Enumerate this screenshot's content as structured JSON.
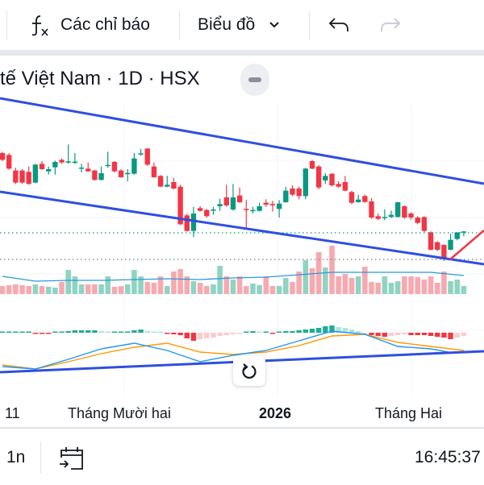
{
  "toolbar": {
    "indicators_label": "Các chỉ báo",
    "indicators_icon": "function-fx-icon",
    "chart_type_label": "Biểu đồ",
    "chart_type_icon": "chevron-down-icon",
    "undo_icon": "undo-icon",
    "redo_icon": "redo-icon"
  },
  "legend": {
    "title": "tế Việt Nam · 1D · HSX",
    "collapse_icon": "minus-icon"
  },
  "time_axis": {
    "labels": [
      "11",
      "Tháng Mười hai",
      "2026",
      "Tháng Hai"
    ]
  },
  "reset_icon": "reset-rotate-icon",
  "bottom_bar": {
    "range": "1n",
    "goto_date_icon": "calendar-goto-icon",
    "clock": "16:45:37"
  },
  "colors": {
    "up": "#089981",
    "down": "#f23645",
    "up_volume": "#8fd3c4",
    "down_volume": "#f7a9b0",
    "trendline": "#2f4fe0",
    "ray": "#f23645",
    "macd_line": "#2196f3",
    "signal_line": "#ff9800",
    "volume_ma": "#2b9ad6"
  },
  "chart_data": {
    "type": "candlestick",
    "candles": [
      [
        440,
        415,
        445,
        410
      ],
      [
        433,
        382,
        440,
        378
      ],
      [
        375,
        330,
        385,
        325
      ],
      [
        375,
        330,
        380,
        325
      ],
      [
        370,
        325,
        390,
        322
      ],
      [
        330,
        397,
        400,
        328
      ],
      [
        400,
        380,
        410,
        378
      ],
      [
        372,
        380,
        390,
        360
      ],
      [
        387,
        407,
        412,
        360
      ],
      [
        415,
        405,
        420,
        400
      ],
      [
        408,
        409,
        472,
        400
      ],
      [
        407,
        408,
        440,
        400
      ],
      [
        385,
        386,
        400,
        368
      ],
      [
        382,
        372,
        405,
        370
      ],
      [
        375,
        340,
        378,
        338
      ],
      [
        340,
        365,
        390,
        338
      ],
      [
        393,
        396,
        445,
        385
      ],
      [
        407,
        372,
        410,
        368
      ],
      [
        375,
        350,
        380,
        348
      ],
      [
        364,
        366,
        380,
        335
      ],
      [
        363,
        420,
        440,
        360
      ],
      [
        436,
        439,
        455,
        430
      ],
      [
        457,
        397,
        457,
        392
      ],
      [
        390,
        350,
        405,
        348
      ],
      [
        355,
        315,
        358,
        313
      ],
      [
        315,
        322,
        355,
        313
      ],
      [
        332,
        308,
        348,
        305
      ],
      [
        315,
        175,
        322,
        172
      ],
      [
        208,
        150,
        215,
        148
      ],
      [
        150,
        215,
        240,
        127
      ],
      [
        235,
        225,
        242,
        222
      ],
      [
        228,
        205,
        232,
        200
      ],
      [
        229,
        230,
        240,
        210
      ],
      [
        242,
        250,
        270,
        225
      ],
      [
        275,
        245,
        322,
        240
      ],
      [
        230,
        275,
        325,
        225
      ],
      [
        282,
        257,
        312,
        255
      ],
      [
        232,
        228,
        265,
        162
      ],
      [
        227,
        228,
        240,
        215
      ],
      [
        225,
        242,
        255,
        222
      ],
      [
        255,
        248,
        268,
        240
      ],
      [
        250,
        245,
        262,
        222
      ],
      [
        232,
        252,
        265,
        200
      ],
      [
        257,
        300,
        315,
        255
      ],
      [
        308,
        285,
        320,
        280
      ],
      [
        308,
        280,
        315,
        268
      ],
      [
        280,
        382,
        385,
        268
      ],
      [
        410,
        382,
        415,
        380
      ],
      [
        390,
        312,
        395,
        305
      ],
      [
        338,
        355,
        365,
        325
      ],
      [
        363,
        320,
        365,
        315
      ],
      [
        325,
        315,
        335,
        310
      ],
      [
        332,
        300,
        355,
        298
      ],
      [
        295,
        255,
        300,
        250
      ],
      [
        257,
        267,
        285,
        255
      ],
      [
        280,
        258,
        285,
        255
      ],
      [
        260,
        200,
        272,
        195
      ],
      [
        205,
        195,
        215,
        190
      ],
      [
        198,
        202,
        230,
        190
      ],
      [
        202,
        210,
        225,
        198
      ],
      [
        202,
        257,
        258,
        200
      ],
      [
        242,
        200,
        245,
        195
      ],
      [
        215,
        200,
        220,
        192
      ],
      [
        200,
        180,
        205,
        175
      ],
      [
        202,
        150,
        205,
        145
      ],
      [
        145,
        80,
        148,
        78
      ],
      [
        108,
        80,
        112,
        75
      ],
      [
        98,
        45,
        100,
        38
      ],
      [
        80,
        117,
        140,
        78
      ],
      [
        120,
        145,
        145,
        115
      ],
      [
        147,
        148,
        150,
        130
      ]
    ],
    "volume": [
      10,
      11,
      12,
      11,
      10,
      12,
      10,
      9,
      8,
      15,
      30,
      22,
      12,
      12,
      12,
      12,
      22,
      9,
      10,
      12,
      30,
      22,
      15,
      14,
      22,
      10,
      28,
      31,
      22,
      16,
      14,
      10,
      12,
      35,
      22,
      18,
      22,
      10,
      13,
      11,
      22,
      10,
      10,
      20,
      15,
      28,
      42,
      32,
      52,
      33,
      60,
      22,
      25,
      20,
      22,
      34,
      15,
      14,
      22,
      14,
      16,
      22,
      22,
      21,
      18,
      22,
      14,
      28,
      16,
      18,
      10
    ],
    "volume_ma": [
      22,
      16,
      17,
      17,
      18,
      19,
      18,
      20,
      21,
      24,
      27,
      27,
      27,
      27,
      23
    ],
    "macd_histogram": [
      0,
      0,
      0,
      0,
      0,
      -1,
      -1,
      -1,
      1,
      1,
      2,
      3,
      3,
      3,
      3,
      2,
      1,
      1,
      1,
      1,
      3,
      4,
      2,
      1,
      0,
      -1,
      -2,
      -3,
      -7,
      -10,
      -8,
      -7,
      -6,
      -4,
      -3,
      -2,
      -1,
      1,
      2,
      1,
      1,
      -1,
      1,
      2,
      2,
      3,
      4,
      5,
      6,
      8,
      9,
      7,
      6,
      4,
      2,
      -1,
      -3,
      -4,
      -5,
      -4,
      -3,
      -2,
      -3,
      -3,
      -3,
      -4,
      -5,
      -6,
      -8,
      -6,
      -4
    ],
    "macd_line": [
      -42,
      -45,
      -33,
      -20,
      -13,
      -22,
      -36,
      -28,
      -22,
      -10,
      2,
      -2,
      -17,
      -20,
      -24
    ],
    "signal_line": [
      -40,
      -45,
      -36,
      -26,
      -18,
      -13,
      -24,
      -27,
      -24,
      -16,
      -4,
      -2,
      -12,
      -17,
      -22
    ],
    "x_labels": [
      "11",
      "Tháng Mười hai",
      "2026",
      "Tháng Hai"
    ]
  }
}
